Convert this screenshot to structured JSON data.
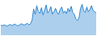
{
  "chart_data": {
    "type": "area",
    "color": "#2f86d1",
    "values": [
      30,
      28,
      31,
      29,
      27,
      30,
      32,
      29,
      31,
      33,
      30,
      28,
      31,
      34,
      32,
      30,
      33,
      35,
      31,
      34,
      45,
      78,
      62,
      88,
      70,
      65,
      82,
      60,
      74,
      90,
      66,
      72,
      85,
      63,
      70,
      80,
      68,
      62,
      77,
      84,
      66,
      72,
      64,
      80,
      70,
      86,
      68,
      62,
      48,
      44,
      52,
      80,
      92,
      72,
      68,
      84,
      70,
      76,
      88,
      74,
      70,
      66
    ],
    "ylim": [
      0,
      100
    ],
    "tick_labels": false,
    "grid": false
  }
}
